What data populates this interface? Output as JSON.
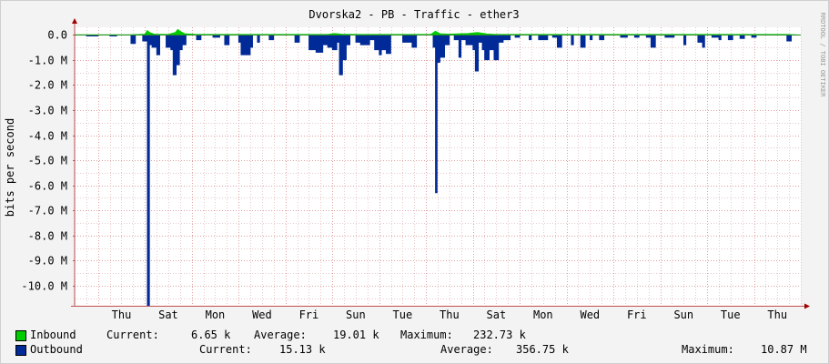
{
  "chart_data": {
    "type": "area",
    "title": "Dvorska2 - PB - Traffic - ether3",
    "ylabel": "bits per second",
    "watermark": "RRDTOOL / TOBI OETIKER",
    "ylim": [
      -10800000,
      300000
    ],
    "y_ticks": [
      {
        "v": 0,
        "label": "0.0"
      },
      {
        "v": -1000000,
        "label": "-1.0 M"
      },
      {
        "v": -2000000,
        "label": "-2.0 M"
      },
      {
        "v": -3000000,
        "label": "-3.0 M"
      },
      {
        "v": -4000000,
        "label": "-4.0 M"
      },
      {
        "v": -5000000,
        "label": "-5.0 M"
      },
      {
        "v": -6000000,
        "label": "-6.0 M"
      },
      {
        "v": -7000000,
        "label": "-7.0 M"
      },
      {
        "v": -8000000,
        "label": "-8.0 M"
      },
      {
        "v": -9000000,
        "label": "-9.0 M"
      },
      {
        "v": -10000000,
        "label": "-10.0 M"
      }
    ],
    "x_range": [
      0,
      15.5
    ],
    "x_day_ticks": [
      "Thu",
      "Sat",
      "Mon",
      "Wed",
      "Fri",
      "Sun",
      "Tue",
      "Thu",
      "Sat",
      "Mon",
      "Wed",
      "Fri",
      "Sun",
      "Tue",
      "Thu"
    ],
    "grid": true,
    "series": [
      {
        "name": "Inbound",
        "color": "#00cc00",
        "points": [
          [
            0,
            0.01
          ],
          [
            1.2,
            0.01
          ],
          [
            1.5,
            0.03
          ],
          [
            1.55,
            0.18
          ],
          [
            1.6,
            0.1
          ],
          [
            1.7,
            0.03
          ],
          [
            2,
            0.02
          ],
          [
            2.15,
            0.1
          ],
          [
            2.2,
            0.22
          ],
          [
            2.25,
            0.15
          ],
          [
            2.35,
            0.05
          ],
          [
            2.6,
            0.02
          ],
          [
            5.4,
            0.02
          ],
          [
            5.55,
            0.06
          ],
          [
            5.7,
            0.03
          ],
          [
            6.1,
            0.02
          ],
          [
            7.6,
            0.02
          ],
          [
            7.7,
            0.15
          ],
          [
            7.8,
            0.05
          ],
          [
            8.0,
            0.03
          ],
          [
            8.4,
            0.06
          ],
          [
            8.6,
            0.1
          ],
          [
            8.8,
            0.04
          ],
          [
            9,
            0.02
          ],
          [
            15.2,
            0.02
          ],
          [
            15.5,
            0.0
          ]
        ]
      },
      {
        "name": "Outbound",
        "color": "#002a97",
        "points": [
          [
            0,
            0
          ],
          [
            0.25,
            0
          ],
          [
            0.25,
            -0.05
          ],
          [
            0.5,
            -0.05
          ],
          [
            0.5,
            0
          ],
          [
            0.75,
            0
          ],
          [
            0.75,
            -0.05
          ],
          [
            0.9,
            -0.05
          ],
          [
            0.9,
            0
          ],
          [
            1.2,
            0
          ],
          [
            1.2,
            -0.35
          ],
          [
            1.3,
            -0.35
          ],
          [
            1.3,
            0
          ],
          [
            1.45,
            0
          ],
          [
            1.45,
            -0.25
          ],
          [
            1.55,
            -0.25
          ],
          [
            1.55,
            -10.87
          ],
          [
            1.6,
            -10.87
          ],
          [
            1.6,
            -0.4
          ],
          [
            1.65,
            -0.4
          ],
          [
            1.65,
            -0.5
          ],
          [
            1.75,
            -0.5
          ],
          [
            1.75,
            -0.8
          ],
          [
            1.82,
            -0.8
          ],
          [
            1.82,
            0
          ],
          [
            1.95,
            0
          ],
          [
            1.95,
            -0.5
          ],
          [
            2.05,
            -0.5
          ],
          [
            2.05,
            -0.6
          ],
          [
            2.1,
            -0.6
          ],
          [
            2.1,
            -1.6
          ],
          [
            2.17,
            -1.6
          ],
          [
            2.17,
            -1.2
          ],
          [
            2.24,
            -1.2
          ],
          [
            2.24,
            -0.6
          ],
          [
            2.3,
            -0.6
          ],
          [
            2.3,
            -0.4
          ],
          [
            2.38,
            -0.4
          ],
          [
            2.38,
            0
          ],
          [
            2.6,
            0
          ],
          [
            2.6,
            -0.2
          ],
          [
            2.7,
            -0.2
          ],
          [
            2.7,
            0
          ],
          [
            2.95,
            0
          ],
          [
            2.95,
            -0.1
          ],
          [
            3.1,
            -0.1
          ],
          [
            3.1,
            0
          ],
          [
            3.2,
            0
          ],
          [
            3.2,
            -0.4
          ],
          [
            3.3,
            -0.4
          ],
          [
            3.3,
            0
          ],
          [
            3.5,
            0
          ],
          [
            3.5,
            -0.3
          ],
          [
            3.55,
            -0.3
          ],
          [
            3.55,
            -0.8
          ],
          [
            3.75,
            -0.8
          ],
          [
            3.75,
            -0.5
          ],
          [
            3.8,
            -0.5
          ],
          [
            3.8,
            0
          ],
          [
            3.9,
            0
          ],
          [
            3.9,
            -0.3
          ],
          [
            3.95,
            -0.3
          ],
          [
            3.95,
            0
          ],
          [
            4.15,
            0
          ],
          [
            4.15,
            -0.2
          ],
          [
            4.25,
            -0.2
          ],
          [
            4.25,
            0
          ],
          [
            4.7,
            0
          ],
          [
            4.7,
            -0.3
          ],
          [
            4.8,
            -0.3
          ],
          [
            4.8,
            0
          ],
          [
            5.0,
            0
          ],
          [
            5.0,
            -0.6
          ],
          [
            5.15,
            -0.6
          ],
          [
            5.15,
            -0.7
          ],
          [
            5.3,
            -0.7
          ],
          [
            5.3,
            -0.4
          ],
          [
            5.4,
            -0.4
          ],
          [
            5.4,
            -0.5
          ],
          [
            5.5,
            -0.5
          ],
          [
            5.5,
            -0.6
          ],
          [
            5.6,
            -0.6
          ],
          [
            5.6,
            -0.3
          ],
          [
            5.65,
            -0.3
          ],
          [
            5.65,
            -1.6
          ],
          [
            5.72,
            -1.6
          ],
          [
            5.72,
            -1.0
          ],
          [
            5.8,
            -1.0
          ],
          [
            5.8,
            -0.4
          ],
          [
            5.88,
            -0.4
          ],
          [
            5.88,
            0
          ],
          [
            6.0,
            0
          ],
          [
            6.0,
            -0.3
          ],
          [
            6.1,
            -0.3
          ],
          [
            6.1,
            -0.4
          ],
          [
            6.3,
            -0.4
          ],
          [
            6.3,
            -0.2
          ],
          [
            6.4,
            -0.2
          ],
          [
            6.4,
            -0.6
          ],
          [
            6.5,
            -0.6
          ],
          [
            6.5,
            -0.8
          ],
          [
            6.55,
            -0.8
          ],
          [
            6.55,
            -0.6
          ],
          [
            6.65,
            -0.6
          ],
          [
            6.65,
            -0.75
          ],
          [
            6.75,
            -0.75
          ],
          [
            6.75,
            0
          ],
          [
            7.0,
            0
          ],
          [
            7.0,
            -0.3
          ],
          [
            7.2,
            -0.3
          ],
          [
            7.2,
            -0.5
          ],
          [
            7.3,
            -0.5
          ],
          [
            7.3,
            0
          ],
          [
            7.65,
            0
          ],
          [
            7.65,
            -0.5
          ],
          [
            7.7,
            -0.5
          ],
          [
            7.7,
            -6.3
          ],
          [
            7.74,
            -6.3
          ],
          [
            7.74,
            -1.1
          ],
          [
            7.8,
            -1.1
          ],
          [
            7.8,
            -0.9
          ],
          [
            7.9,
            -0.9
          ],
          [
            7.9,
            -0.4
          ],
          [
            8.0,
            -0.4
          ],
          [
            8.0,
            0
          ],
          [
            8.1,
            0
          ],
          [
            8.1,
            -0.2
          ],
          [
            8.2,
            -0.2
          ],
          [
            8.2,
            -0.9
          ],
          [
            8.25,
            -0.9
          ],
          [
            8.25,
            -0.2
          ],
          [
            8.35,
            -0.2
          ],
          [
            8.35,
            -0.4
          ],
          [
            8.5,
            -0.4
          ],
          [
            8.5,
            -0.6
          ],
          [
            8.55,
            -0.6
          ],
          [
            8.55,
            -1.45
          ],
          [
            8.62,
            -1.45
          ],
          [
            8.62,
            -0.3
          ],
          [
            8.7,
            -0.3
          ],
          [
            8.7,
            -0.6
          ],
          [
            8.75,
            -0.6
          ],
          [
            8.75,
            -1.0
          ],
          [
            8.85,
            -1.0
          ],
          [
            8.85,
            -0.6
          ],
          [
            8.95,
            -0.6
          ],
          [
            8.95,
            -1.0
          ],
          [
            9.05,
            -1.0
          ],
          [
            9.05,
            -0.3
          ],
          [
            9.15,
            -0.3
          ],
          [
            9.15,
            -0.2
          ],
          [
            9.3,
            -0.2
          ],
          [
            9.3,
            0
          ],
          [
            9.4,
            0
          ],
          [
            9.4,
            -0.1
          ],
          [
            9.5,
            -0.1
          ],
          [
            9.5,
            0
          ],
          [
            9.7,
            0
          ],
          [
            9.7,
            -0.2
          ],
          [
            9.75,
            -0.2
          ],
          [
            9.75,
            0
          ],
          [
            9.9,
            0
          ],
          [
            9.9,
            -0.2
          ],
          [
            10.1,
            -0.2
          ],
          [
            10.1,
            0
          ],
          [
            10.2,
            0
          ],
          [
            10.2,
            -0.1
          ],
          [
            10.3,
            -0.1
          ],
          [
            10.3,
            -0.5
          ],
          [
            10.4,
            -0.5
          ],
          [
            10.4,
            0
          ],
          [
            10.6,
            0
          ],
          [
            10.6,
            -0.4
          ],
          [
            10.65,
            -0.4
          ],
          [
            10.65,
            0
          ],
          [
            10.8,
            0
          ],
          [
            10.8,
            -0.5
          ],
          [
            10.9,
            -0.5
          ],
          [
            10.9,
            0
          ],
          [
            11.0,
            0
          ],
          [
            11.0,
            -0.2
          ],
          [
            11.05,
            -0.2
          ],
          [
            11.05,
            0
          ],
          [
            11.2,
            0
          ],
          [
            11.2,
            -0.2
          ],
          [
            11.3,
            -0.2
          ],
          [
            11.3,
            0
          ],
          [
            11.65,
            0
          ],
          [
            11.65,
            -0.1
          ],
          [
            11.8,
            -0.1
          ],
          [
            11.8,
            0
          ],
          [
            11.95,
            0
          ],
          [
            11.95,
            -0.1
          ],
          [
            12.05,
            -0.1
          ],
          [
            12.05,
            0
          ],
          [
            12.2,
            0
          ],
          [
            12.2,
            -0.1
          ],
          [
            12.3,
            -0.1
          ],
          [
            12.3,
            -0.5
          ],
          [
            12.4,
            -0.5
          ],
          [
            12.4,
            0
          ],
          [
            12.6,
            0
          ],
          [
            12.6,
            -0.1
          ],
          [
            12.7,
            -0.1
          ],
          [
            12.7,
            -0.1
          ],
          [
            12.8,
            -0.1
          ],
          [
            12.8,
            0
          ],
          [
            13.0,
            0
          ],
          [
            13.0,
            -0.4
          ],
          [
            13.05,
            -0.4
          ],
          [
            13.05,
            0
          ],
          [
            13.3,
            0
          ],
          [
            13.3,
            -0.3
          ],
          [
            13.4,
            -0.3
          ],
          [
            13.4,
            -0.5
          ],
          [
            13.45,
            -0.5
          ],
          [
            13.45,
            0
          ],
          [
            13.6,
            0
          ],
          [
            13.6,
            -0.1
          ],
          [
            13.75,
            -0.1
          ],
          [
            13.75,
            -0.2
          ],
          [
            13.8,
            -0.2
          ],
          [
            13.8,
            0
          ],
          [
            13.95,
            0
          ],
          [
            13.95,
            -0.2
          ],
          [
            14.05,
            -0.2
          ],
          [
            14.05,
            0
          ],
          [
            14.2,
            0
          ],
          [
            14.2,
            -0.15
          ],
          [
            14.3,
            -0.15
          ],
          [
            14.3,
            0
          ],
          [
            14.45,
            0
          ],
          [
            14.45,
            -0.1
          ],
          [
            14.55,
            -0.1
          ],
          [
            14.55,
            0
          ],
          [
            15.2,
            0
          ],
          [
            15.2,
            -0.25
          ],
          [
            15.3,
            -0.25
          ],
          [
            15.3,
            0
          ],
          [
            15.5,
            0
          ]
        ]
      }
    ]
  },
  "legend": {
    "inbound": {
      "label": "Inbound",
      "current_label": "Current:",
      "current": "6.65 k",
      "average_label": "Average:",
      "average": "19.01 k",
      "maximum_label": "Maximum:",
      "maximum": "232.73 k"
    },
    "outbound": {
      "label": "Outbound",
      "current_label": "Current:",
      "current": "15.13 k",
      "average_label": "Average:",
      "average": "356.75 k",
      "maximum_label": "Maximum:",
      "maximum": "10.87 M"
    }
  }
}
